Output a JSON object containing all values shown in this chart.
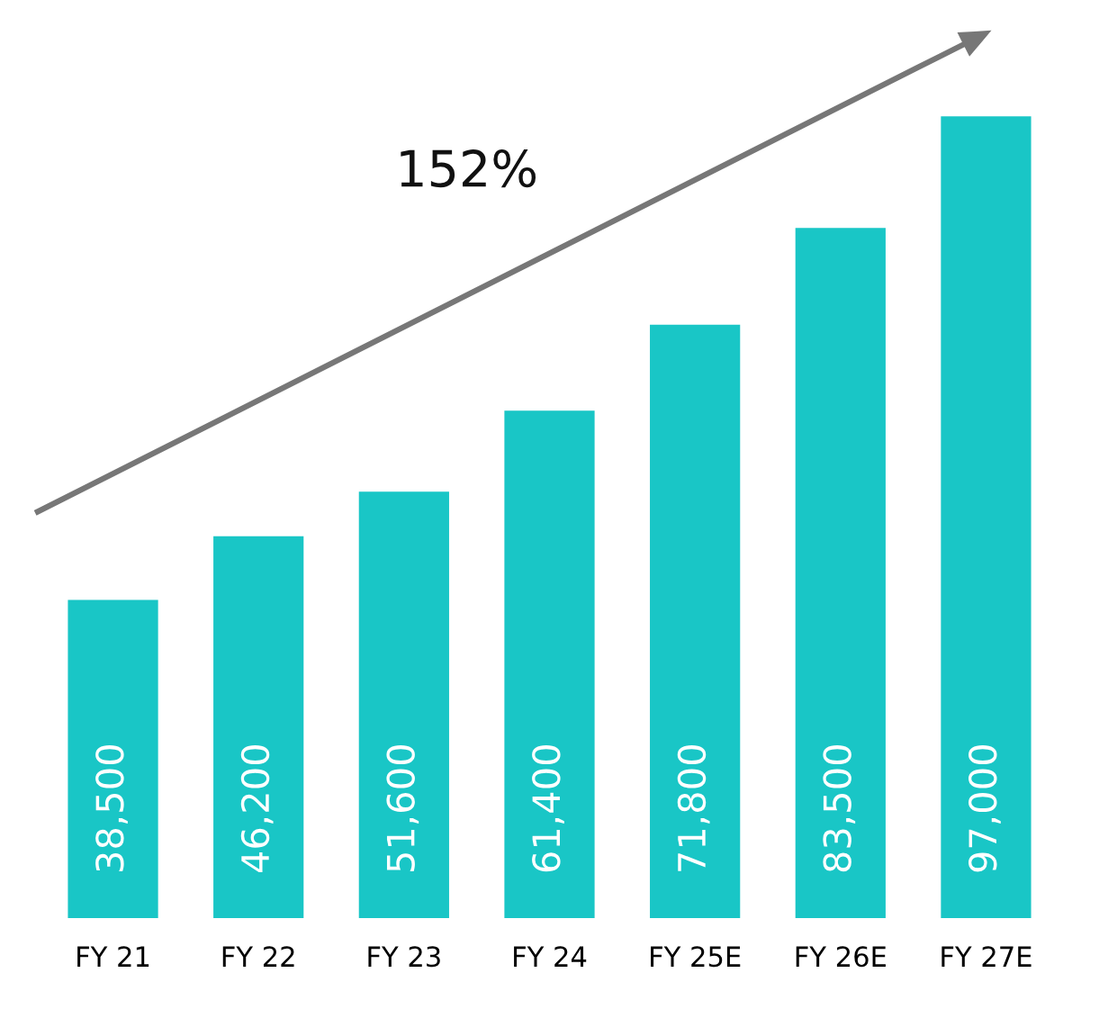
{
  "chart_data": {
    "type": "bar",
    "categories": [
      "FY 21",
      "FY 22",
      "FY 23",
      "FY 24",
      "FY 25E",
      "FY 26E",
      "FY 27E"
    ],
    "values": [
      38500,
      46200,
      51600,
      61400,
      71800,
      83500,
      97000
    ],
    "color": "#19c6c6",
    "value_labels": [
      "38,500",
      "46,200",
      "51,600",
      "61,400",
      "71,800",
      "83,500",
      "97,000"
    ],
    "annotations": [
      "152%"
    ],
    "tick_labels": "x",
    "grid": false,
    "legend": false
  }
}
